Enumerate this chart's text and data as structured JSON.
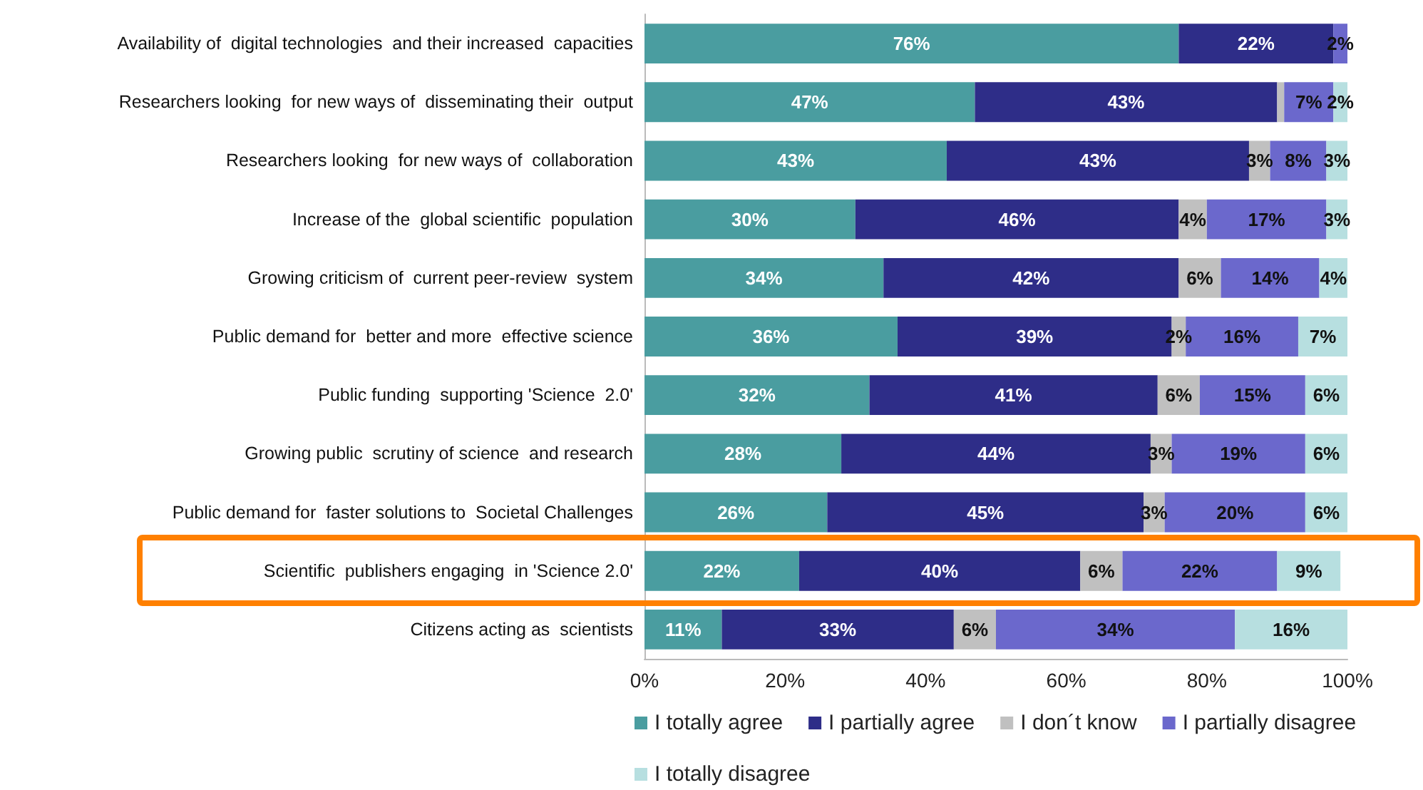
{
  "chart_data": {
    "type": "bar",
    "orientation": "horizontal",
    "stacked": true,
    "categories": [
      "Availability of  digital technologies  and their increased  capacities",
      "Researchers looking  for new ways of  disseminating their  output",
      "Researchers looking  for new ways of  collaboration",
      "Increase of the  global scientific  population",
      "Growing criticism of  current peer-review  system",
      "Public demand for  better and more  effective science",
      "Public funding  supporting 'Science  2.0'",
      "Growing public  scrutiny of science  and research",
      "Public demand for  faster solutions to  Societal Challenges",
      "Scientific  publishers engaging  in 'Science 2.0'",
      "Citizens acting as  scientists"
    ],
    "series": [
      {
        "name": "I totally agree",
        "color": "#4a9da0",
        "values": [
          76,
          47,
          43,
          30,
          34,
          36,
          32,
          28,
          26,
          22,
          11
        ],
        "value_labels": [
          "76%",
          "47%",
          "43%",
          "30%",
          "34%",
          "36%",
          "32%",
          "28%",
          "26%",
          "22%",
          "11%"
        ]
      },
      {
        "name": "I partially agree",
        "color": "#2e2d88",
        "values": [
          22,
          43,
          43,
          46,
          42,
          39,
          41,
          44,
          45,
          40,
          33
        ],
        "value_labels": [
          "22%",
          "43%",
          "43%",
          "46%",
          "42%",
          "39%",
          "41%",
          "44%",
          "45%",
          "40%",
          "33%"
        ]
      },
      {
        "name": "I don´t know",
        "color": "#c0c0c0",
        "values": [
          0,
          1,
          3,
          4,
          6,
          2,
          6,
          3,
          3,
          6,
          6
        ],
        "value_labels": [
          null,
          null,
          "3%",
          "4%",
          "6%",
          "2%",
          "6%",
          "3%",
          "3%",
          "6%",
          "6%"
        ]
      },
      {
        "name": "I partially disagree",
        "color": "#6b68cc",
        "values": [
          2,
          7,
          8,
          17,
          14,
          16,
          15,
          19,
          20,
          22,
          34
        ],
        "value_labels": [
          "2%",
          "7%",
          "8%",
          "17%",
          "14%",
          "16%",
          "15%",
          "19%",
          "20%",
          "22%",
          "34%"
        ]
      },
      {
        "name": "I totally disagree",
        "color": "#b7dfe0",
        "values": [
          0,
          2,
          3,
          3,
          4,
          7,
          6,
          6,
          6,
          9,
          16
        ],
        "value_labels": [
          null,
          "2%",
          "3%",
          "3%",
          "4%",
          "7%",
          "6%",
          "6%",
          "6%",
          "9%",
          "16%"
        ]
      }
    ],
    "xlim": [
      0,
      100
    ],
    "xticks": [
      {
        "value": 0,
        "label": "0%"
      },
      {
        "value": 20,
        "label": "20%"
      },
      {
        "value": 40,
        "label": "40%"
      },
      {
        "value": 60,
        "label": "60%"
      },
      {
        "value": 80,
        "label": "80%"
      },
      {
        "value": 100,
        "label": "100%"
      }
    ],
    "grid": false,
    "legend": "bottom"
  }
}
